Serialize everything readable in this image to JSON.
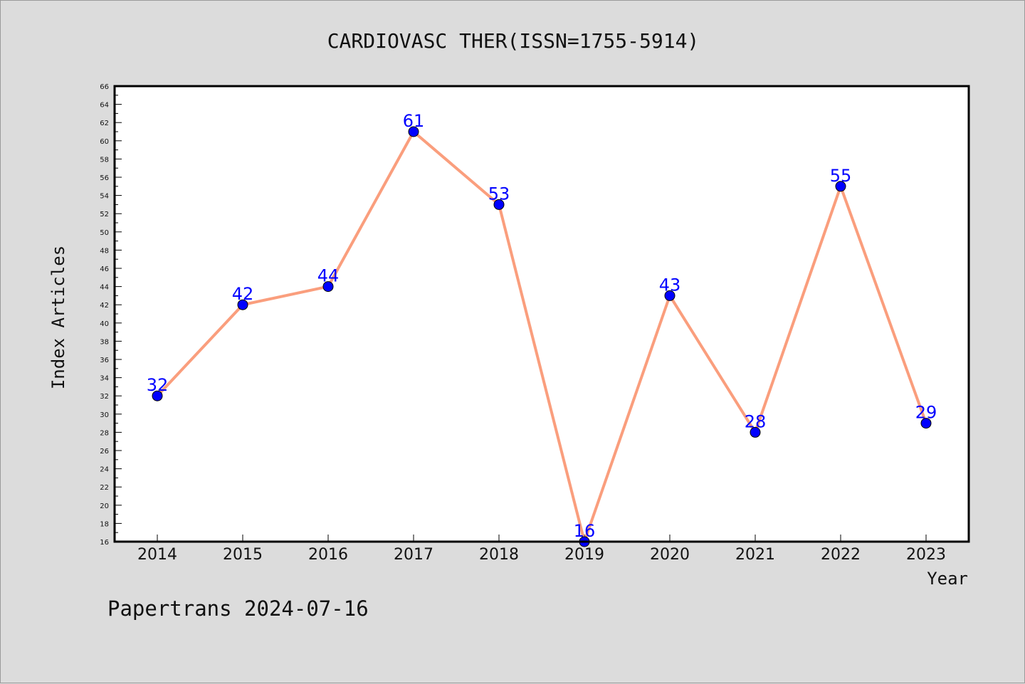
{
  "chart_data": {
    "type": "line",
    "title": "CARDIOVASC THER(ISSN=1755-5914)",
    "xlabel": "Year",
    "ylabel": "Index Articles",
    "categories": [
      "2014",
      "2015",
      "2016",
      "2017",
      "2018",
      "2019",
      "2020",
      "2021",
      "2022",
      "2023"
    ],
    "values": [
      32,
      42,
      44,
      61,
      53,
      16,
      43,
      28,
      55,
      29
    ],
    "ylim": [
      16,
      66
    ],
    "yticks": [
      16,
      18,
      20,
      22,
      24,
      26,
      28,
      30,
      32,
      34,
      36,
      38,
      40,
      42,
      44,
      46,
      48,
      50,
      52,
      54,
      56,
      58,
      60,
      62,
      64,
      66
    ],
    "grid": false,
    "legend": "none",
    "colors": {
      "line": "#fa9e7d",
      "marker": "#0000ff",
      "data_label": "#0000ff",
      "background": "#dcdcdc",
      "plot_background": "#ffffff"
    }
  },
  "footer": "Papertrans 2024-07-16"
}
